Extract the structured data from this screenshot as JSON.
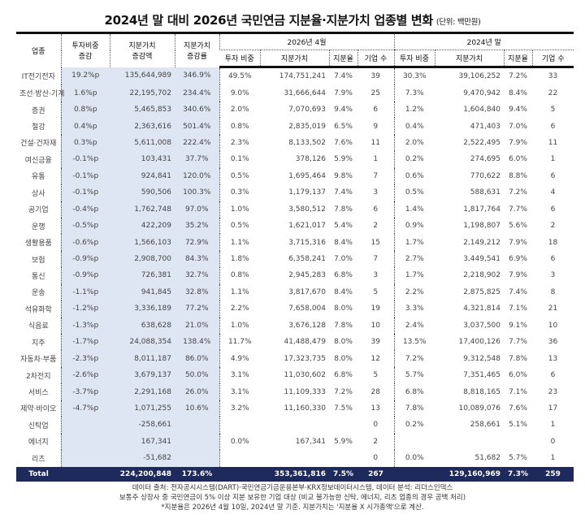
{
  "title": "2024년 말 대비 2026년 국민연금 지분율·지분가치 업종별 변화",
  "unit": "(단위: 백만원)",
  "headers": {
    "sector": "업종",
    "weight_change": "투자비중\n증감",
    "value_change": "지분가치\n증감액",
    "value_change_rate": "지분가치\n증감률",
    "group_2026": "2026년 4월",
    "group_2024": "2024년 말",
    "weight": "투자 비중",
    "value": "지분가치",
    "stake": "지분율",
    "count": "기업 수"
  },
  "rows": [
    [
      "IT전기전자",
      "19.2%p",
      "135,644,989",
      "346.9%",
      "49.5%",
      "174,751,241",
      "7.4%",
      "39",
      "30.3%",
      "39,106,252",
      "7.2%",
      "33"
    ],
    [
      "조선·방산·기계",
      "1.6%p",
      "22,195,702",
      "234.4%",
      "9.0%",
      "31,666,644",
      "7.9%",
      "25",
      "7.3%",
      "9,470,942",
      "8.4%",
      "22"
    ],
    [
      "증권",
      "0.8%p",
      "5,465,853",
      "340.6%",
      "2.0%",
      "7,070,693",
      "9.4%",
      "6",
      "1.2%",
      "1,604,840",
      "9.4%",
      "5"
    ],
    [
      "철강",
      "0.4%p",
      "2,363,616",
      "501.4%",
      "0.8%",
      "2,835,019",
      "6.5%",
      "9",
      "0.4%",
      "471,403",
      "7.0%",
      "6"
    ],
    [
      "건설·건자재",
      "0.3%p",
      "5,611,008",
      "222.4%",
      "2.3%",
      "8,133,502",
      "7.6%",
      "11",
      "2.0%",
      "2,522,495",
      "7.9%",
      "11"
    ],
    [
      "여신금융",
      "-0.1%p",
      "103,431",
      "37.7%",
      "0.1%",
      "378,126",
      "5.9%",
      "1",
      "0.2%",
      "274,695",
      "6.0%",
      "1"
    ],
    [
      "유통",
      "-0.1%p",
      "924,841",
      "120.0%",
      "0.5%",
      "1,695,464",
      "9.8%",
      "7",
      "0.6%",
      "770,622",
      "8.8%",
      "6"
    ],
    [
      "상사",
      "-0.1%p",
      "590,506",
      "100.3%",
      "0.3%",
      "1,179,137",
      "7.4%",
      "3",
      "0.5%",
      "588,631",
      "7.2%",
      "4"
    ],
    [
      "공기업",
      "-0.4%p",
      "1,762,748",
      "97.0%",
      "1.0%",
      "3,580,512",
      "7.8%",
      "6",
      "1.4%",
      "1,817,764",
      "7.7%",
      "6"
    ],
    [
      "운행",
      "-0.5%p",
      "422,209",
      "35.2%",
      "0.5%",
      "1,621,017",
      "5.4%",
      "2",
      "0.9%",
      "1,198,807",
      "5.6%",
      "2"
    ],
    [
      "생활용품",
      "-0.6%p",
      "1,566,103",
      "72.9%",
      "1.1%",
      "3,715,316",
      "8.4%",
      "15",
      "1.7%",
      "2,149,212",
      "7.9%",
      "18"
    ],
    [
      "보험",
      "-0.9%p",
      "2,908,700",
      "84.3%",
      "1.8%",
      "6,358,241",
      "7.0%",
      "7",
      "2.7%",
      "3,449,541",
      "6.9%",
      "6"
    ],
    [
      "통신",
      "-0.9%p",
      "726,381",
      "32.7%",
      "0.8%",
      "2,945,283",
      "6.8%",
      "3",
      "1.7%",
      "2,218,902",
      "7.9%",
      "3"
    ],
    [
      "운송",
      "-1.1%p",
      "941,845",
      "32.8%",
      "1.1%",
      "3,817,670",
      "8.4%",
      "5",
      "2.2%",
      "2,875,825",
      "7.4%",
      "8"
    ],
    [
      "석유화학",
      "-1.2%p",
      "3,336,189",
      "77.2%",
      "2.2%",
      "7,658,004",
      "8.0%",
      "19",
      "3.3%",
      "4,321,814",
      "7.1%",
      "21"
    ],
    [
      "식음료",
      "-1.3%p",
      "638,628",
      "21.0%",
      "1.0%",
      "3,676,128",
      "7.8%",
      "10",
      "2.4%",
      "3,037,500",
      "9.1%",
      "10"
    ],
    [
      "지주",
      "-1.7%p",
      "24,088,354",
      "138.4%",
      "11.7%",
      "41,488,479",
      "8.0%",
      "39",
      "13.5%",
      "17,400,126",
      "7.7%",
      "36"
    ],
    [
      "자동차·부품",
      "-2.3%p",
      "8,011,187",
      "86.0%",
      "4.9%",
      "17,323,735",
      "8.0%",
      "12",
      "7.2%",
      "9,312,548",
      "7.8%",
      "13"
    ],
    [
      "2차전지",
      "-2.6%p",
      "3,679,137",
      "50.0%",
      "3.1%",
      "11,030,602",
      "6.8%",
      "5",
      "5.7%",
      "7,351,465",
      "6.0%",
      "6"
    ],
    [
      "서비스",
      "-3.7%p",
      "2,291,168",
      "26.0%",
      "3.1%",
      "11,109,333",
      "7.2%",
      "28",
      "6.8%",
      "8,818,165",
      "7.1%",
      "23"
    ],
    [
      "제약·바이오",
      "-4.7%p",
      "1,071,255",
      "10.6%",
      "3.2%",
      "11,160,330",
      "7.5%",
      "13",
      "7.8%",
      "10,089,076",
      "7.6%",
      "17"
    ],
    [
      "신탁업",
      "",
      "-258,661",
      "",
      "",
      "",
      "",
      "0",
      "0.2%",
      "258,661",
      "5.1%",
      "1"
    ],
    [
      "에너지",
      "",
      "167,341",
      "",
      "0.0%",
      "167,341",
      "5.9%",
      "2",
      "",
      "",
      "",
      "0"
    ],
    [
      "리츠",
      "",
      "-51,682",
      "",
      "",
      "",
      "",
      "0",
      "0.0%",
      "51,682",
      "5.7%",
      "1"
    ]
  ],
  "total": [
    "Total",
    "",
    "224,200,848",
    "173.6%",
    "",
    "353,361,816",
    "7.5%",
    "267",
    "",
    "129,160,969",
    "7.3%",
    "259"
  ],
  "footer": [
    "데이터 출처: 전자공시시스템(DART)·국민연금기금운용본부·KRX정보데이터시스템, 데이터 분석: 리더스인덱스",
    "보통주 상장사 중 국민연금이 5% 이상 지분 보유한 기업 대상 (비교 불가능한 신탁, 에너지, 리츠 업종의 경우 공백 처리)",
    "*지분율은 2026년 4월 10일, 2024년 말 기준. 지분가치는 '지분율 X 시가총액'으로 계산."
  ],
  "colors": {
    "shaded": "#dfe6f3",
    "total_bg": "#1f2a5c"
  }
}
